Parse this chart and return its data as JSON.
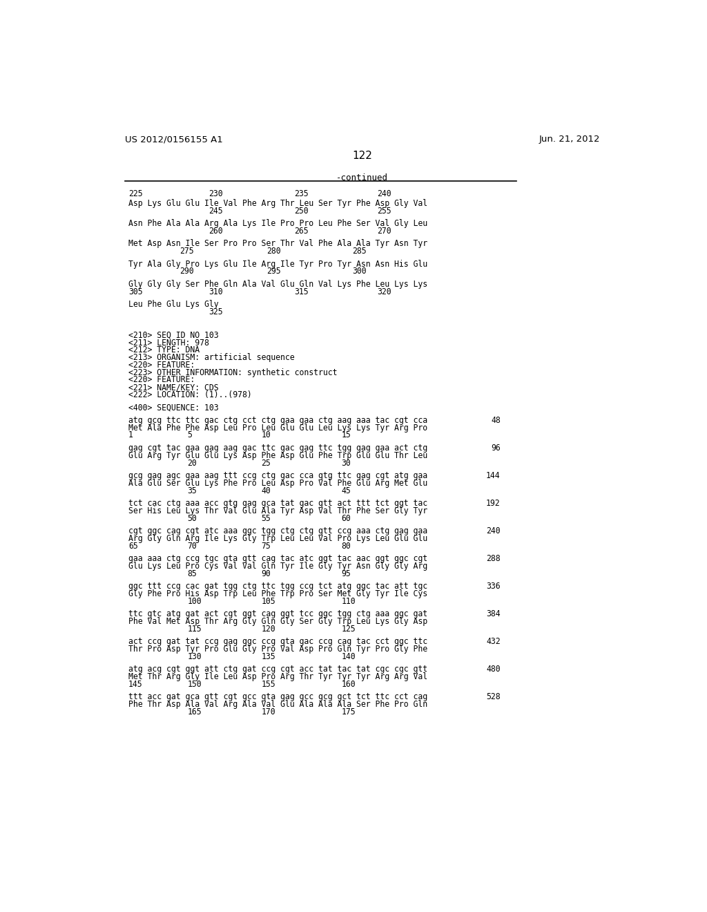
{
  "header_left": "US 2012/0156155 A1",
  "header_right": "Jun. 21, 2012",
  "page_number": "122",
  "continued_label": "-continued",
  "background_color": "#ffffff",
  "text_color": "#000000",
  "content_lines": [
    {
      "type": "num4",
      "nums": [
        "225",
        "230",
        "235",
        "240"
      ],
      "offsets": [
        0,
        150,
        310,
        465
      ]
    },
    {
      "type": "blank_small"
    },
    {
      "type": "text",
      "text": "Asp Lys Glu Glu Ile Val Phe Arg Thr Leu Ser Tyr Phe Asp Gly Val"
    },
    {
      "type": "num3",
      "nums": [
        "245",
        "250",
        "255"
      ],
      "offsets": [
        150,
        310,
        465
      ]
    },
    {
      "type": "blank_large"
    },
    {
      "type": "text",
      "text": "Asn Phe Ala Ala Arg Ala Lys Ile Pro Pro Leu Phe Ser Val Gly Leu"
    },
    {
      "type": "num3",
      "nums": [
        "260",
        "265",
        "270"
      ],
      "offsets": [
        150,
        310,
        465
      ]
    },
    {
      "type": "blank_large"
    },
    {
      "type": "text",
      "text": "Met Asp Asn Ile Ser Pro Pro Ser Thr Val Phe Ala Ala Tyr Asn Tyr"
    },
    {
      "type": "num3",
      "nums": [
        "275",
        "280",
        "285"
      ],
      "offsets": [
        95,
        258,
        418
      ]
    },
    {
      "type": "blank_large"
    },
    {
      "type": "text",
      "text": "Tyr Ala Gly Pro Lys Glu Ile Arg Ile Tyr Pro Tyr Asn Asn His Glu"
    },
    {
      "type": "num3",
      "nums": [
        "290",
        "295",
        "300"
      ],
      "offsets": [
        95,
        258,
        418
      ]
    },
    {
      "type": "blank_large"
    },
    {
      "type": "text",
      "text": "Gly Gly Gly Ser Phe Gln Ala Val Glu Gln Val Lys Phe Leu Lys Lys"
    },
    {
      "type": "num4",
      "nums": [
        "305",
        "310",
        "315",
        "320"
      ],
      "offsets": [
        0,
        150,
        310,
        465
      ]
    },
    {
      "type": "blank_large"
    },
    {
      "type": "text",
      "text": "Leu Phe Glu Lys Gly"
    },
    {
      "type": "num1",
      "nums": [
        "325"
      ],
      "offsets": [
        150
      ]
    },
    {
      "type": "blank_large"
    },
    {
      "type": "blank_large"
    },
    {
      "type": "blank_large"
    },
    {
      "type": "meta",
      "text": "<210> SEQ ID NO 103"
    },
    {
      "type": "meta",
      "text": "<211> LENGTH: 978"
    },
    {
      "type": "meta",
      "text": "<212> TYPE: DNA"
    },
    {
      "type": "meta",
      "text": "<213> ORGANISM: artificial sequence"
    },
    {
      "type": "meta",
      "text": "<220> FEATURE:"
    },
    {
      "type": "meta",
      "text": "<223> OTHER INFORMATION: synthetic construct"
    },
    {
      "type": "meta",
      "text": "<220> FEATURE:"
    },
    {
      "type": "meta",
      "text": "<221> NAME/KEY: CDS"
    },
    {
      "type": "meta",
      "text": "<222> LOCATION: (1)..(978)"
    },
    {
      "type": "blank_large"
    },
    {
      "type": "meta",
      "text": "<400> SEQUENCE: 103"
    },
    {
      "type": "blank_large"
    },
    {
      "type": "seq",
      "seq": "atg gcg ttc ttc gac ctg cct ctg gaa gaa ctg aag aaa tac cgt cca",
      "num": "48"
    },
    {
      "type": "text",
      "text": "Met Ala Phe Phe Asp Leu Pro Leu Glu Glu Leu Lys Lys Tyr Arg Pro"
    },
    {
      "type": "num4",
      "nums": [
        "1",
        "5",
        "10",
        "15"
      ],
      "offsets": [
        0,
        110,
        248,
        398
      ]
    },
    {
      "type": "blank_large"
    },
    {
      "type": "seq",
      "seq": "gag cgt tac gaa gag aag gac ttc gac gag ttc tgg gag gaa act ctg",
      "num": "96"
    },
    {
      "type": "text",
      "text": "Glu Arg Tyr Glu Glu Lys Asp Phe Asp Glu Phe Trp Glu Glu Thr Leu"
    },
    {
      "type": "num3",
      "nums": [
        "20",
        "25",
        "30"
      ],
      "offsets": [
        110,
        248,
        398
      ]
    },
    {
      "type": "blank_large"
    },
    {
      "type": "seq",
      "seq": "gcg gag agc gaa aag ttt ccg ctg gac cca gtg ttc gag cgt atg gaa",
      "num": "144"
    },
    {
      "type": "text",
      "text": "Ala Glu Ser Glu Lys Phe Pro Leu Asp Pro Val Phe Glu Arg Met Glu"
    },
    {
      "type": "num3",
      "nums": [
        "35",
        "40",
        "45"
      ],
      "offsets": [
        110,
        248,
        398
      ]
    },
    {
      "type": "blank_large"
    },
    {
      "type": "seq",
      "seq": "tct cac ctg aaa acc gtg gag gca tat gac gtt act ttt tct ggt tac",
      "num": "192"
    },
    {
      "type": "text",
      "text": "Ser His Leu Lys Thr Val Glu Ala Tyr Asp Val Thr Phe Ser Gly Tyr"
    },
    {
      "type": "num3",
      "nums": [
        "50",
        "55",
        "60"
      ],
      "offsets": [
        110,
        248,
        398
      ]
    },
    {
      "type": "blank_large"
    },
    {
      "type": "seq",
      "seq": "cgt ggc cag cgt atc aaa ggc tgg ctg ctg gtt ccg aaa ctg gag gaa",
      "num": "240"
    },
    {
      "type": "text",
      "text": "Arg Gly Gln Arg Ile Lys Gly Trp Leu Leu Val Pro Lys Leu Glu Glu"
    },
    {
      "type": "num4",
      "nums": [
        "65",
        "70",
        "75",
        "80"
      ],
      "offsets": [
        0,
        110,
        248,
        398
      ]
    },
    {
      "type": "blank_large"
    },
    {
      "type": "seq",
      "seq": "gaa aaa ctg ccg tgc gta gtt cag tac atc ggt tac aac ggt ggc cgt",
      "num": "288"
    },
    {
      "type": "text",
      "text": "Glu Lys Leu Pro Cys Val Val Gln Tyr Ile Gly Tyr Asn Gly Gly Arg"
    },
    {
      "type": "num3",
      "nums": [
        "85",
        "90",
        "95"
      ],
      "offsets": [
        110,
        248,
        398
      ]
    },
    {
      "type": "blank_large"
    },
    {
      "type": "seq",
      "seq": "ggc ttt ccg cac gat tgg ctg ttc tgg ccg tct atg ggc tac att tgc",
      "num": "336"
    },
    {
      "type": "text",
      "text": "Gly Phe Pro His Asp Trp Leu Phe Trp Pro Ser Met Gly Tyr Ile Cys"
    },
    {
      "type": "num3",
      "nums": [
        "100",
        "105",
        "110"
      ],
      "offsets": [
        110,
        248,
        398
      ]
    },
    {
      "type": "blank_large"
    },
    {
      "type": "seq",
      "seq": "ttc gtc atg gat act cgt ggt cag ggt tcc ggc tgg ctg aaa ggc gat",
      "num": "384"
    },
    {
      "type": "text",
      "text": "Phe Val Met Asp Thr Arg Gly Gln Gly Ser Gly Trp Leu Lys Gly Asp"
    },
    {
      "type": "num3",
      "nums": [
        "115",
        "120",
        "125"
      ],
      "offsets": [
        110,
        248,
        398
      ]
    },
    {
      "type": "blank_large"
    },
    {
      "type": "seq",
      "seq": "act ccg gat tat ccg gag ggc ccg gta gac ccg cag tac cct ggc ttc",
      "num": "432"
    },
    {
      "type": "text",
      "text": "Thr Pro Asp Tyr Pro Glu Gly Pro Val Asp Pro Gln Tyr Pro Gly Phe"
    },
    {
      "type": "num3",
      "nums": [
        "130",
        "135",
        "140"
      ],
      "offsets": [
        110,
        248,
        398
      ]
    },
    {
      "type": "blank_large"
    },
    {
      "type": "seq",
      "seq": "atg acg cgt ggt att ctg gat ccg cgt acc tat tac tat cgc cgc gtt",
      "num": "480"
    },
    {
      "type": "text",
      "text": "Met Thr Arg Gly Ile Leu Asp Pro Arg Thr Tyr Tyr Tyr Arg Arg Val"
    },
    {
      "type": "num4",
      "nums": [
        "145",
        "150",
        "155",
        "160"
      ],
      "offsets": [
        0,
        110,
        248,
        398
      ]
    },
    {
      "type": "blank_large"
    },
    {
      "type": "seq",
      "seq": "ttt acc gat gca gtt cgt gcc gta gag gcc gcg gct tct ttc cct cag",
      "num": "528"
    },
    {
      "type": "text",
      "text": "Phe Thr Asp Ala Val Arg Ala Val Glu Ala Ala Ala Ser Phe Pro Gln"
    },
    {
      "type": "num3",
      "nums": [
        "165",
        "170",
        "175"
      ],
      "offsets": [
        110,
        248,
        398
      ]
    }
  ]
}
